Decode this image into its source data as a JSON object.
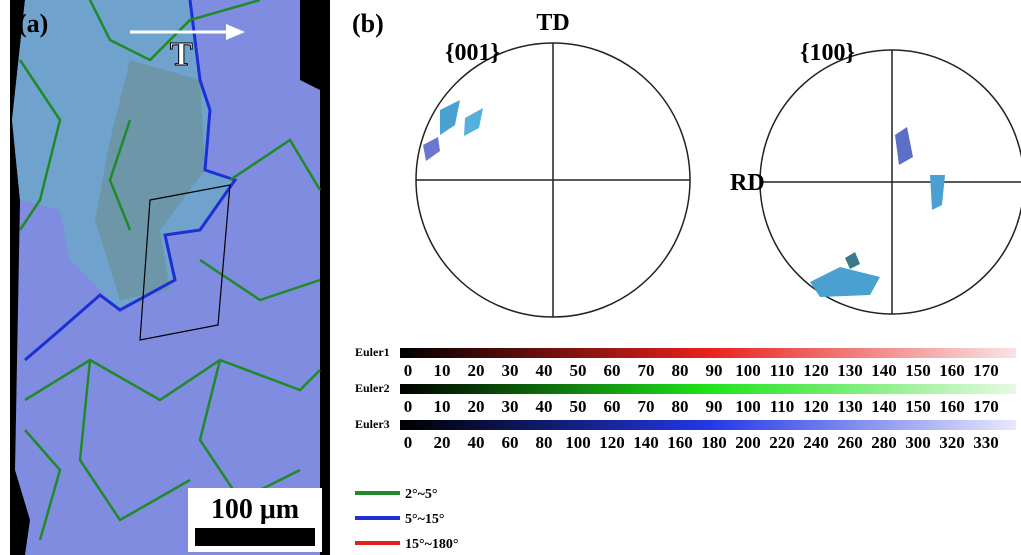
{
  "panel_a": {
    "label": "(a)",
    "arrow_label": "T",
    "scale_bar": "100 μm"
  },
  "panel_b": {
    "label": "(b)",
    "pole_figures": [
      {
        "title": "{001}",
        "top_label": "TD"
      },
      {
        "title": "{100}",
        "side_label": "RD"
      }
    ],
    "color_bars": [
      {
        "name": "Euler1",
        "ticks": [
          0,
          10,
          20,
          30,
          40,
          50,
          60,
          70,
          80,
          90,
          100,
          110,
          120,
          130,
          140,
          150,
          160,
          170
        ]
      },
      {
        "name": "Euler2",
        "ticks": [
          0,
          10,
          20,
          30,
          40,
          50,
          60,
          70,
          80,
          90,
          100,
          110,
          120,
          130,
          140,
          150,
          160,
          170
        ]
      },
      {
        "name": "Euler3",
        "ticks": [
          0,
          20,
          40,
          60,
          80,
          100,
          120,
          140,
          160,
          180,
          200,
          220,
          240,
          260,
          280,
          300,
          320,
          330
        ]
      }
    ],
    "legend": [
      {
        "label": "2°~5°",
        "color": "#1f8a2a"
      },
      {
        "label": "5°~15°",
        "color": "#1d2fd6"
      },
      {
        "label": "15°~180°",
        "color": "#e0201c"
      }
    ]
  }
}
